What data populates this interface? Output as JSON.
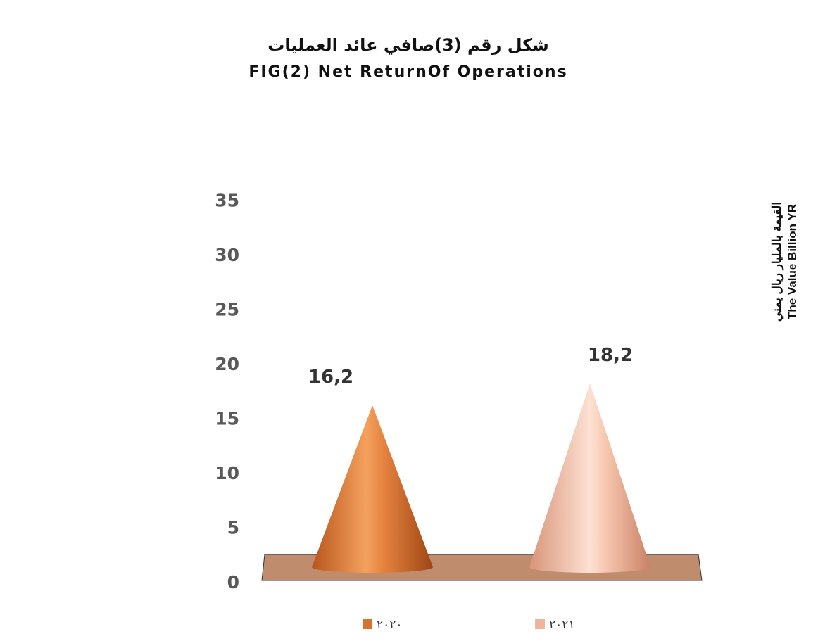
{
  "chart_data": {
    "type": "bar",
    "title": "شكل رقم (3)صافي عائد العمليات",
    "subtitle": "FIG(2) Net ReturnOf Operations",
    "ylabel_ar": "القيمة بالمليار ريال يمني",
    "ylabel_en": "The Value Billion YR",
    "ylim": [
      0,
      35
    ],
    "yticks": [
      "0",
      "5",
      "10",
      "15",
      "20",
      "25",
      "30",
      "35"
    ],
    "series": [
      {
        "name": "٢٠٢٠",
        "values": [
          16.2
        ],
        "label": "16,2",
        "color": "#d8732e"
      },
      {
        "name": "٢٠٢١",
        "values": [
          18.2
        ],
        "label": "18,2",
        "color": "#f2b39c"
      }
    ],
    "floor_color": "#bf8c6e",
    "legend": "bottom",
    "grid": false
  }
}
